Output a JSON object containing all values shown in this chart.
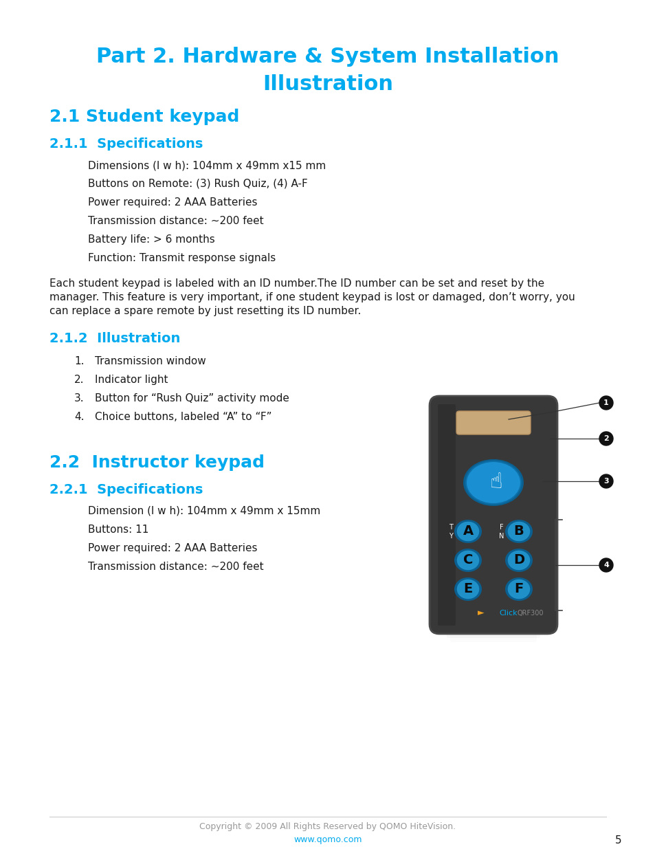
{
  "bg_color": "#ffffff",
  "title_color": "#00aaee",
  "body_color": "#1a1a1a",
  "cyan_color": "#00aaee",
  "page_title_line1": "Part 2. Hardware & System Installation",
  "page_title_line2": "Illustration",
  "section_21": "2.1 Student keypad",
  "section_211": "2.1.1  Specifications",
  "spec_items": [
    "Dimensions (l w h): 104mm x 49mm x15 mm",
    "Buttons on Remote: (3) Rush Quiz, (4) A-F",
    "Power required: 2 AAA Batteries",
    "Transmission distance: ~200 feet",
    "Battery life: > 6 months",
    "Function: Transmit response signals"
  ],
  "paragraph": "Each student keypad is labeled with an ID number.The ID number can be set and reset by the manager. This feature is very important, if one student keypad is lost or damaged, don’t worry, you can replace a spare remote by just resetting its ID number.",
  "section_212": "2.1.2  Illustration",
  "illust_items": [
    "Transmission window",
    "Indicator light",
    "Button for “Rush Quiz” activity mode",
    "Choice buttons, labeled “A” to “F”"
  ],
  "section_22": "2.2  Instructor keypad",
  "section_221": "2.2.1  Specifications",
  "spec2_items": [
    "Dimension (l w h): 104mm x 49mm x 15mm",
    "Buttons: 11",
    "Power required: 2 AAA Batteries",
    "Transmission distance: ~200 feet"
  ],
  "footer_copyright": "Copyright © 2009 All Rights Reserved by QOMO HiteVision.",
  "footer_url": "www.qomo.com",
  "footer_page": "5"
}
